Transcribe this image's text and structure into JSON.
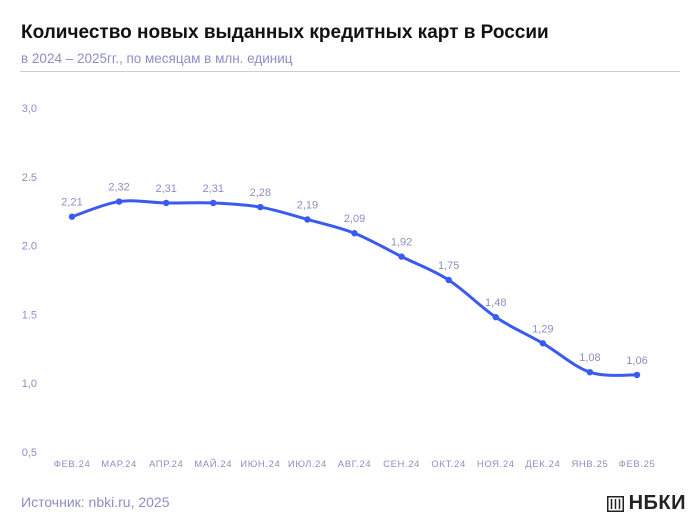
{
  "header": {
    "title": "Количество новых выданных кредитных карт в России",
    "subtitle": "в 2024 – 2025гг., по месяцам в млн. единиц"
  },
  "footer": {
    "source": "Источник: nbki.ru, 2025",
    "logo_text": "НБКИ"
  },
  "colors": {
    "line": "#3b5bf0",
    "axis_text": "#8d8fc4",
    "label_text": "#8d8fc4"
  },
  "chart_data": {
    "type": "line",
    "title": "Количество новых выданных кредитных карт в России",
    "subtitle": "в 2024 – 2025гг., по месяцам в млн. единиц",
    "xlabel": "",
    "ylabel": "",
    "categories": [
      "ФЕВ.24",
      "МАР.24",
      "АПР.24",
      "МАЙ.24",
      "ИЮН.24",
      "ИЮЛ.24",
      "АВГ.24",
      "СЕН.24",
      "ОКТ.24",
      "НОЯ.24",
      "ДЕК.24",
      "ЯНВ.25",
      "ФЕВ.25"
    ],
    "values": [
      2.21,
      2.32,
      2.31,
      2.31,
      2.28,
      2.19,
      2.09,
      1.92,
      1.75,
      1.48,
      1.29,
      1.08,
      1.06
    ],
    "value_labels": [
      "2,21",
      "2,32",
      "2,31",
      "2,31",
      "2,28",
      "2,19",
      "2,09",
      "1,92",
      "1,75",
      "1,48",
      "1,29",
      "1,08",
      "1,06"
    ],
    "ylim": [
      0.5,
      3.0
    ],
    "yticks": [
      0.5,
      1.0,
      1.5,
      2.0,
      2.5,
      3.0
    ],
    "ytick_labels": [
      "0,5",
      "1,0",
      "1.5",
      "2.0",
      "2.5",
      "3,0"
    ],
    "grid": false,
    "legend": "none"
  }
}
